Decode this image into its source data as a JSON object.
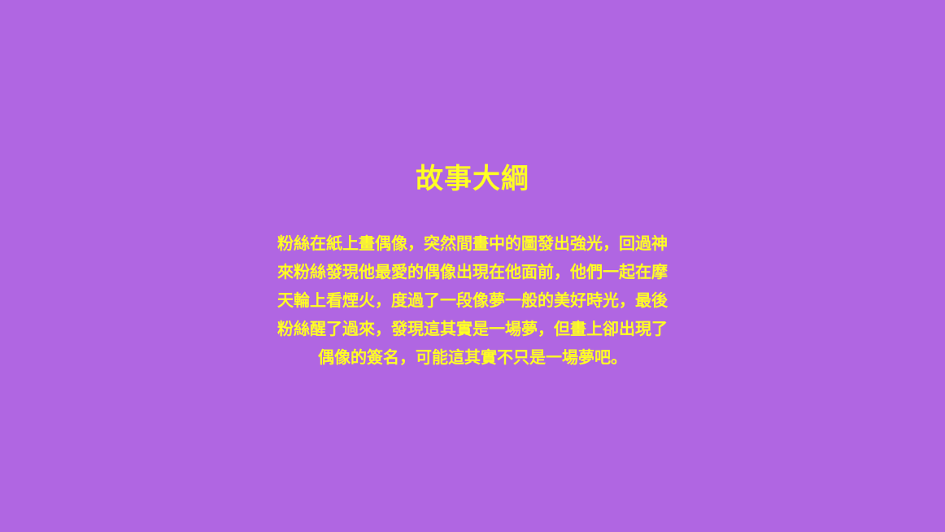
{
  "slide": {
    "title": "故事大綱",
    "summary_lines": [
      "粉絲在紙上畫偶像，突然間畫中的圖發出強光，回過神",
      "來粉絲發現他最愛的偶像出現在他面前，他們一起在摩",
      "天輪上看煙火，度過了一段像夢一般的美好時光，最後",
      "粉絲醒了過來，發現這其實是一場夢，但畫上卻出現了",
      "偶像的簽名，可能這其實不只是一場夢吧。"
    ]
  },
  "colors": {
    "background": "#b066e2",
    "text": "#ffff24"
  }
}
